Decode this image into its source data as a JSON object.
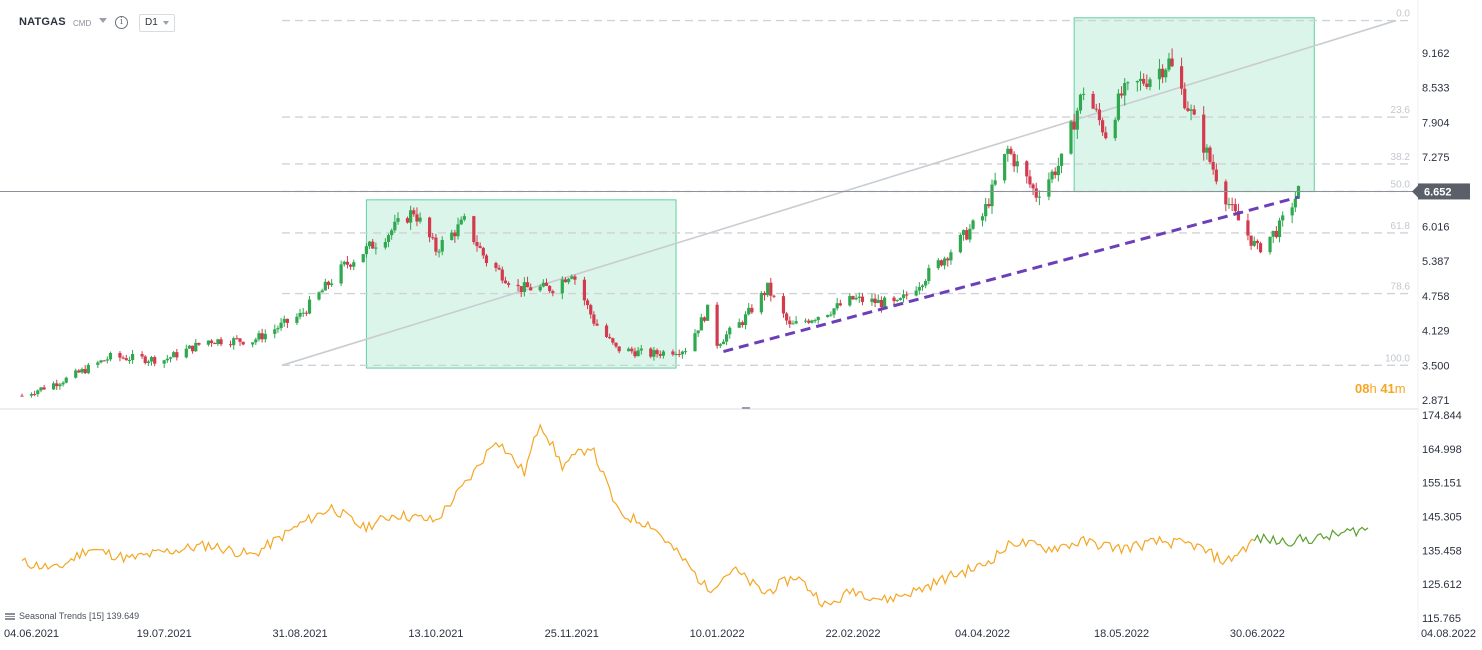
{
  "header": {
    "symbol": "NATGAS",
    "type": "CMD",
    "timeframe": "D1"
  },
  "countdown": {
    "hours": "08",
    "hours_unit": "h",
    "minutes": "41",
    "minutes_unit": "m"
  },
  "indicator": {
    "label": "Seasonal Trends [15] 139.649"
  },
  "colors": {
    "up": "#2fa84f",
    "down": "#d33a4d",
    "zone": "#5fd0a0",
    "trend": "#6b3fb8",
    "seasonal": "#f5a623",
    "seasonal_recent": "#5aa02c",
    "price_label_bg": "#5a5f69"
  },
  "chart_data": [
    {
      "type": "candlestick",
      "symbol": "NATGAS",
      "timeframe": "D1",
      "current_price": "6.652",
      "y_ticks": [
        "9.162",
        "8.533",
        "7.904",
        "7.275",
        "6.016",
        "5.387",
        "4.758",
        "4.129",
        "3.500",
        "2.871"
      ],
      "ylim": [
        2.7,
        9.8
      ],
      "x_ticks": [
        "04.06.2021",
        "19.07.2021",
        "31.08.2021",
        "13.10.2021",
        "25.11.2021",
        "10.01.2022",
        "22.02.2022",
        "04.04.2022",
        "18.05.2022",
        "30.06.2022",
        "04.08.2022"
      ],
      "close_path": [
        [
          "04.06.2021",
          2.95
        ],
        [
          "18.06.2021",
          3.25
        ],
        [
          "02.07.2021",
          3.65
        ],
        [
          "19.07.2021",
          3.6
        ],
        [
          "02.08.2021",
          3.95
        ],
        [
          "16.08.2021",
          3.95
        ],
        [
          "31.08.2021",
          4.4
        ],
        [
          "14.09.2021",
          5.3
        ],
        [
          "28.09.2021",
          5.9
        ],
        [
          "06.10.2021",
          6.3
        ],
        [
          "13.10.2021",
          5.6
        ],
        [
          "22.10.2021",
          6.1
        ],
        [
          "29.10.2021",
          5.4
        ],
        [
          "08.11.2021",
          4.9
        ],
        [
          "19.11.2021",
          4.9
        ],
        [
          "25.11.2021",
          5.2
        ],
        [
          "02.12.2021",
          4.3
        ],
        [
          "09.12.2021",
          3.8
        ],
        [
          "20.12.2021",
          3.7
        ],
        [
          "31.12.2021",
          3.8
        ],
        [
          "07.01.2022",
          4.5
        ],
        [
          "10.01.2022",
          3.9
        ],
        [
          "18.01.2022",
          4.3
        ],
        [
          "26.01.2022",
          4.9
        ],
        [
          "02.02.2022",
          4.2
        ],
        [
          "15.02.2022",
          4.5
        ],
        [
          "22.02.2022",
          4.7
        ],
        [
          "08.03.2022",
          4.6
        ],
        [
          "22.03.2022",
          5.4
        ],
        [
          "04.04.2022",
          6.2
        ],
        [
          "12.04.2022",
          7.4
        ],
        [
          "21.04.2022",
          6.6
        ],
        [
          "29.04.2022",
          7.2
        ],
        [
          "06.05.2022",
          8.5
        ],
        [
          "13.05.2022",
          7.7
        ],
        [
          "18.05.2022",
          8.4
        ],
        [
          "26.05.2022",
          8.7
        ],
        [
          "02.06.2022",
          9.0
        ],
        [
          "08.06.2022",
          8.2
        ],
        [
          "15.06.2022",
          7.2
        ],
        [
          "22.06.2022",
          6.3
        ],
        [
          "30.06.2022",
          5.6
        ],
        [
          "07.07.2022",
          6.0
        ],
        [
          "13.07.2022",
          6.65
        ]
      ],
      "fibonacci_levels": [
        {
          "label": "0.0",
          "price": 9.75
        },
        {
          "label": "23.6",
          "price": 8.0
        },
        {
          "label": "38.2",
          "price": 7.15
        },
        {
          "label": "50.0",
          "price": 6.652
        },
        {
          "label": "61.8",
          "price": 5.9
        },
        {
          "label": "78.6",
          "price": 4.8
        },
        {
          "label": "100.0",
          "price": 3.5
        }
      ],
      "trendline": {
        "start": [
          "12.01.2022",
          3.75
        ],
        "end": [
          "13.07.2022",
          6.55
        ],
        "style": "dashed"
      },
      "zones": [
        {
          "from": "21.09.2021",
          "to": "28.12.2021",
          "top": 6.5,
          "bottom": 3.45
        },
        {
          "from": "03.05.2022",
          "to": "18.07.2022",
          "top": 9.8,
          "bottom": 6.65
        }
      ]
    },
    {
      "type": "line",
      "name": "Seasonal Trends [15]",
      "last_value": "139.649",
      "y_ticks": [
        "174.844",
        "164.998",
        "155.151",
        "145.305",
        "135.458",
        "125.612",
        "115.765"
      ],
      "ylim": [
        115.765,
        174.844
      ],
      "points": [
        [
          "04.06.2021",
          132
        ],
        [
          "15.06.2021",
          130
        ],
        [
          "25.06.2021",
          136
        ],
        [
          "08.07.2021",
          133
        ],
        [
          "19.07.2021",
          135
        ],
        [
          "02.08.2021",
          137
        ],
        [
          "16.08.2021",
          134
        ],
        [
          "31.08.2021",
          143
        ],
        [
          "10.09.2021",
          148
        ],
        [
          "20.09.2021",
          142
        ],
        [
          "30.09.2021",
          146
        ],
        [
          "13.10.2021",
          144
        ],
        [
          "25.10.2021",
          158
        ],
        [
          "01.11.2021",
          168
        ],
        [
          "10.11.2021",
          158
        ],
        [
          "15.11.2021",
          173
        ],
        [
          "22.11.2021",
          160
        ],
        [
          "01.12.2021",
          166
        ],
        [
          "10.12.2021",
          146
        ],
        [
          "20.12.2021",
          143
        ],
        [
          "31.12.2021",
          132
        ],
        [
          "07.01.2022",
          124
        ],
        [
          "15.01.2022",
          130
        ],
        [
          "25.01.2022",
          123
        ],
        [
          "04.02.2022",
          128
        ],
        [
          "14.02.2022",
          119
        ],
        [
          "22.02.2022",
          124
        ],
        [
          "04.03.2022",
          121
        ],
        [
          "15.03.2022",
          124
        ],
        [
          "25.03.2022",
          128
        ],
        [
          "04.04.2022",
          131
        ],
        [
          "14.04.2022",
          138
        ],
        [
          "25.04.2022",
          136
        ],
        [
          "06.05.2022",
          138
        ],
        [
          "18.05.2022",
          136
        ],
        [
          "30.05.2022",
          138
        ],
        [
          "10.06.2022",
          137
        ],
        [
          "20.06.2022",
          132
        ],
        [
          "30.06.2022",
          139
        ],
        [
          "07.07.2022",
          138
        ],
        [
          "20.07.2022",
          139
        ],
        [
          "04.08.2022",
          142
        ]
      ]
    }
  ]
}
